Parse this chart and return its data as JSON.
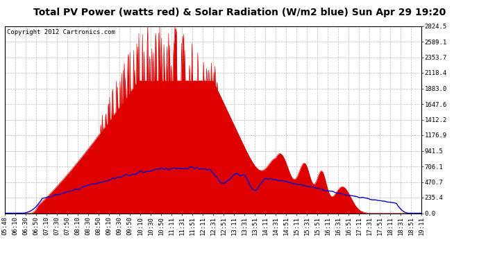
{
  "title": "Total PV Power (watts red) & Solar Radiation (W/m2 blue) Sun Apr 29 19:20",
  "copyright_text": "Copyright 2012 Cartronics.com",
  "y_ticks": [
    0.0,
    235.4,
    470.7,
    706.1,
    941.5,
    1176.9,
    1412.2,
    1647.6,
    1883.0,
    2118.4,
    2353.7,
    2589.1,
    2824.5
  ],
  "x_tick_labels": [
    "05:48",
    "06:10",
    "06:30",
    "06:50",
    "07:10",
    "07:30",
    "07:50",
    "08:10",
    "08:30",
    "08:50",
    "09:10",
    "09:30",
    "09:50",
    "10:10",
    "10:30",
    "10:50",
    "11:11",
    "11:31",
    "11:51",
    "12:11",
    "12:31",
    "12:51",
    "13:11",
    "13:31",
    "13:51",
    "14:11",
    "14:31",
    "14:51",
    "15:11",
    "15:31",
    "15:51",
    "16:11",
    "16:31",
    "16:51",
    "17:11",
    "17:31",
    "17:51",
    "18:11",
    "18:31",
    "18:51",
    "19:11"
  ],
  "bg_color": "#ffffff",
  "plot_bg_color": "#ffffff",
  "red_fill_color": "#dd0000",
  "blue_line_color": "#0000cc",
  "grid_color": "#bbbbbb",
  "title_fontsize": 10,
  "copyright_fontsize": 6.5,
  "tick_fontsize": 6.5,
  "ylim_max": 2824.5
}
